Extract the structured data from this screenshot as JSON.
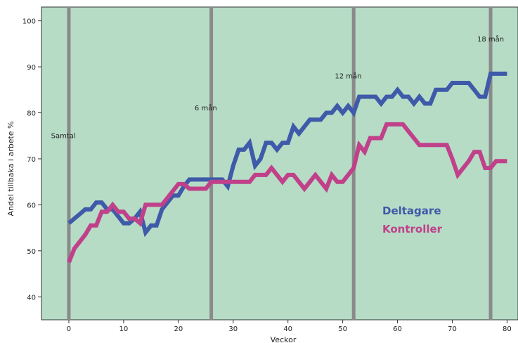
{
  "chart_data": {
    "type": "line",
    "title": "",
    "xlabel": "Veckor",
    "ylabel": "Andel tillbaka i arbete %",
    "xlim": [
      -5,
      82
    ],
    "ylim": [
      35,
      103
    ],
    "x_ticks": [
      0,
      10,
      20,
      30,
      40,
      50,
      60,
      70,
      80
    ],
    "y_ticks": [
      40,
      50,
      60,
      70,
      80,
      90,
      100
    ],
    "grid": false,
    "background_color": "#b6dcc6",
    "legend_position": "right",
    "vertical_markers": [
      {
        "x": 0,
        "label": "Samtal",
        "label_x": -1,
        "label_y": 74.5
      },
      {
        "x": 26,
        "label": "6 mån",
        "label_x": 25,
        "label_y": 80.5
      },
      {
        "x": 52,
        "label": "12 mån",
        "label_x": 51,
        "label_y": 87.5
      },
      {
        "x": 77,
        "label": "18 mån",
        "label_x": 77,
        "label_y": 95.5
      }
    ],
    "marker_color": "#8a8a8a",
    "series": [
      {
        "name": "Deltagare",
        "color": "#3e5aa8",
        "points": [
          [
            0,
            56
          ],
          [
            1,
            57
          ],
          [
            2,
            58
          ],
          [
            3,
            59
          ],
          [
            4,
            59
          ],
          [
            5,
            60.5
          ],
          [
            6,
            60.5
          ],
          [
            7,
            59
          ],
          [
            8,
            59
          ],
          [
            9,
            57.5
          ],
          [
            10,
            56
          ],
          [
            11,
            56
          ],
          [
            12,
            57
          ],
          [
            13,
            58.5
          ],
          [
            14,
            54
          ],
          [
            15,
            55.5
          ],
          [
            16,
            55.5
          ],
          [
            17,
            59
          ],
          [
            18,
            60.5
          ],
          [
            19,
            62
          ],
          [
            20,
            62
          ],
          [
            21,
            64
          ],
          [
            22,
            65.5
          ],
          [
            23,
            65.5
          ],
          [
            24,
            65.5
          ],
          [
            25,
            65.5
          ],
          [
            26,
            65.5
          ],
          [
            27,
            65.5
          ],
          [
            28,
            65.5
          ],
          [
            29,
            64
          ],
          [
            30,
            68.5
          ],
          [
            31,
            72
          ],
          [
            32,
            72
          ],
          [
            33,
            73.5
          ],
          [
            34,
            68.5
          ],
          [
            35,
            70
          ],
          [
            36,
            73.5
          ],
          [
            37,
            73.5
          ],
          [
            38,
            72
          ],
          [
            39,
            73.5
          ],
          [
            40,
            73.5
          ],
          [
            41,
            77
          ],
          [
            42,
            75.5
          ],
          [
            43,
            77
          ],
          [
            44,
            78.5
          ],
          [
            45,
            78.5
          ],
          [
            46,
            78.5
          ],
          [
            47,
            80
          ],
          [
            48,
            80
          ],
          [
            49,
            81.5
          ],
          [
            50,
            80
          ],
          [
            51,
            81.5
          ],
          [
            52,
            80
          ],
          [
            53,
            83.5
          ],
          [
            54,
            83.5
          ],
          [
            55,
            83.5
          ],
          [
            56,
            83.5
          ],
          [
            57,
            82
          ],
          [
            58,
            83.5
          ],
          [
            59,
            83.5
          ],
          [
            60,
            85
          ],
          [
            61,
            83.5
          ],
          [
            62,
            83.5
          ],
          [
            63,
            82
          ],
          [
            64,
            83.5
          ],
          [
            65,
            82
          ],
          [
            66,
            82
          ],
          [
            67,
            85
          ],
          [
            68,
            85
          ],
          [
            69,
            85
          ],
          [
            70,
            86.5
          ],
          [
            71,
            86.5
          ],
          [
            72,
            86.5
          ],
          [
            73,
            86.5
          ],
          [
            74,
            85
          ],
          [
            75,
            83.5
          ],
          [
            76,
            83.5
          ],
          [
            77,
            88.5
          ],
          [
            78,
            88.5
          ],
          [
            79,
            88.5
          ],
          [
            80,
            88.5
          ]
        ]
      },
      {
        "name": "Kontroller",
        "color": "#c0418a",
        "points": [
          [
            0,
            47.5
          ],
          [
            1,
            50.5
          ],
          [
            2,
            52
          ],
          [
            3,
            53.5
          ],
          [
            4,
            55.5
          ],
          [
            5,
            55.5
          ],
          [
            6,
            58.5
          ],
          [
            7,
            58.5
          ],
          [
            8,
            60
          ],
          [
            9,
            58.5
          ],
          [
            10,
            58.5
          ],
          [
            11,
            57
          ],
          [
            12,
            57
          ],
          [
            13,
            56
          ],
          [
            14,
            60
          ],
          [
            15,
            60
          ],
          [
            16,
            60
          ],
          [
            17,
            60
          ],
          [
            18,
            61.5
          ],
          [
            19,
            63
          ],
          [
            20,
            64.5
          ],
          [
            21,
            64.5
          ],
          [
            22,
            63.5
          ],
          [
            23,
            63.5
          ],
          [
            24,
            63.5
          ],
          [
            25,
            63.5
          ],
          [
            26,
            65
          ],
          [
            27,
            65
          ],
          [
            28,
            65
          ],
          [
            29,
            65
          ],
          [
            30,
            65
          ],
          [
            31,
            65
          ],
          [
            32,
            65
          ],
          [
            33,
            65
          ],
          [
            34,
            66.5
          ],
          [
            35,
            66.5
          ],
          [
            36,
            66.5
          ],
          [
            37,
            68
          ],
          [
            38,
            66.5
          ],
          [
            39,
            65
          ],
          [
            40,
            66.5
          ],
          [
            41,
            66.5
          ],
          [
            42,
            65
          ],
          [
            43,
            63.5
          ],
          [
            44,
            65
          ],
          [
            45,
            66.5
          ],
          [
            46,
            65
          ],
          [
            47,
            63.5
          ],
          [
            48,
            66.5
          ],
          [
            49,
            65
          ],
          [
            50,
            65
          ],
          [
            51,
            66.5
          ],
          [
            52,
            68
          ],
          [
            53,
            73
          ],
          [
            54,
            71.5
          ],
          [
            55,
            74.5
          ],
          [
            56,
            74.5
          ],
          [
            57,
            74.5
          ],
          [
            58,
            77.5
          ],
          [
            59,
            77.5
          ],
          [
            60,
            77.5
          ],
          [
            61,
            77.5
          ],
          [
            62,
            76
          ],
          [
            63,
            74.5
          ],
          [
            64,
            73
          ],
          [
            65,
            73
          ],
          [
            66,
            73
          ],
          [
            67,
            73
          ],
          [
            68,
            73
          ],
          [
            69,
            73
          ],
          [
            70,
            70
          ],
          [
            71,
            66.5
          ],
          [
            72,
            68
          ],
          [
            73,
            69.5
          ],
          [
            74,
            71.5
          ],
          [
            75,
            71.5
          ],
          [
            76,
            68
          ],
          [
            77,
            68
          ],
          [
            78,
            69.5
          ],
          [
            79,
            69.5
          ],
          [
            80,
            69.5
          ]
        ]
      }
    ]
  }
}
